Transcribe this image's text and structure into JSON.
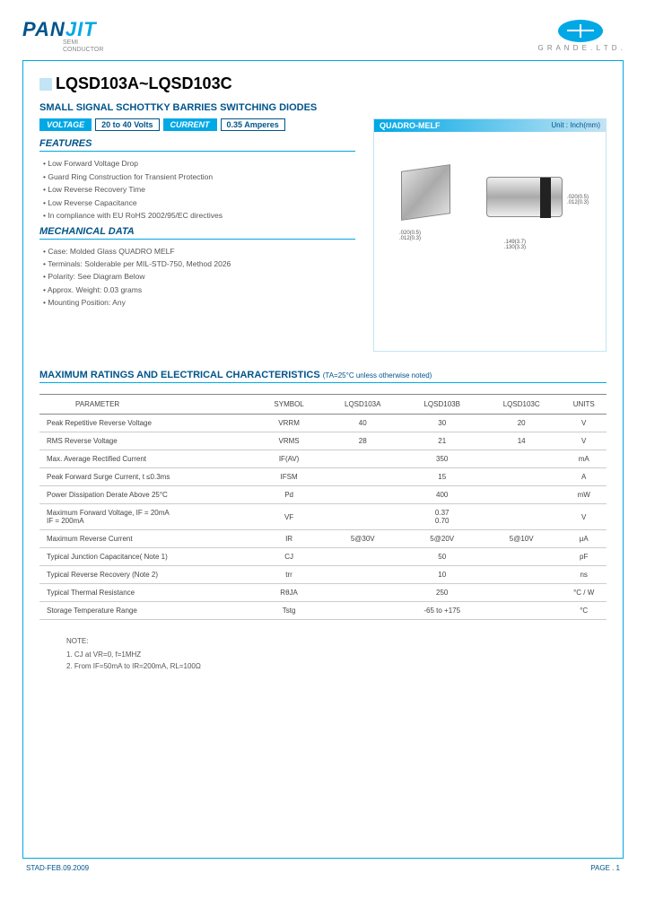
{
  "brand": {
    "pan": "PAN",
    "jit": "JIT",
    "semi1": "SEMI",
    "semi2": "CONDUCTOR"
  },
  "company": "G R A N D E . L T D .",
  "title": "LQSD103A~LQSD103C",
  "subtitle": "SMALL SIGNAL SCHOTTKY BARRIES SWITCHING DIODES",
  "voltage_label": "VOLTAGE",
  "voltage_value": "20 to 40 Volts",
  "current_label": "CURRENT",
  "current_value": "0.35 Amperes",
  "features_head": "FEATURES",
  "features": [
    "Low Forward Voltage Drop",
    "Guard Ring Construction for Transient Protection",
    "Low Reverse Recovery Time",
    "Low Reverse Capacitance",
    "In compliance with EU RoHS 2002/95/EC directives"
  ],
  "mech_head": "MECHANICAL DATA",
  "mechanical": [
    "Case: Molded Glass QUADRO MELF",
    "Terminals: Solderable per MIL-STD-750, Method 2026",
    "Polarity: See Diagram Below",
    "Approx. Weight: 0.03 grams",
    "Mounting Position: Any"
  ],
  "pkg_title": "QUADRO-MELF",
  "pkg_unit": "Unit : Inch(mm)",
  "dim1": ".020(0.5)\n.012(0.3)",
  "dim2": ".149(3.7)\n.130(3.3)",
  "dim3": ".020(0.5)\n.012(0.3)",
  "ratings_head": "MAXIMUM RATINGS AND ELECTRICAL CHARACTERISTICS",
  "ratings_cond": "(TA=25°C unless otherwise noted)",
  "cols": {
    "param": "PARAMETER",
    "symbol": "SYMBOL",
    "a": "LQSD103A",
    "b": "LQSD103B",
    "c": "LQSD103C",
    "units": "UNITS"
  },
  "rows": [
    {
      "param": "Peak Repetitive Reverse Voltage",
      "symbol": "VRRM",
      "a": "40",
      "b": "30",
      "c": "20",
      "units": "V",
      "span": false
    },
    {
      "param": "RMS Reverse Voltage",
      "symbol": "VRMS",
      "a": "28",
      "b": "21",
      "c": "14",
      "units": "V",
      "span": false
    },
    {
      "param": "Max. Average Rectified Current",
      "symbol": "IF(AV)",
      "val": "350",
      "units": "mA",
      "span": true
    },
    {
      "param": "Peak Forward Surge Current, t ≤0.3ms",
      "symbol": "IFSM",
      "val": "15",
      "units": "A",
      "span": true
    },
    {
      "param": "Power Dissipation Derate Above 25°C",
      "symbol": "Pd",
      "val": "400",
      "units": "mW",
      "span": true
    },
    {
      "param": "Maximum Forward Voltage, IF = 20mA\nIF = 200mA",
      "symbol": "VF",
      "val": "0.37\n0.70",
      "units": "V",
      "span": true
    },
    {
      "param": "Maximum Reverse Current",
      "symbol": "IR",
      "a": "5@30V",
      "b": "5@20V",
      "c": "5@10V",
      "units": "μA",
      "span": false
    },
    {
      "param": "Typical Junction Capacitance( Note 1)",
      "symbol": "CJ",
      "val": "50",
      "units": "pF",
      "span": true
    },
    {
      "param": "Typical Reverse Recovery (Note 2)",
      "symbol": "trr",
      "val": "10",
      "units": "ns",
      "span": true
    },
    {
      "param": "Typical Thermal Resistance",
      "symbol": "RθJA",
      "val": "250",
      "units": "°C / W",
      "span": true
    },
    {
      "param": "Storage Temperature Range",
      "symbol": "Tstg",
      "val": "-65 to +175",
      "units": "°C",
      "span": true
    }
  ],
  "notes_title": "NOTE:",
  "notes": [
    "1. CJ at VR=0, f=1MHZ",
    "2. From IF=50mA to IR=200mA, RL=100Ω"
  ],
  "footer_left": "STAD-FEB.09.2009",
  "footer_right": "PAGE .  1"
}
